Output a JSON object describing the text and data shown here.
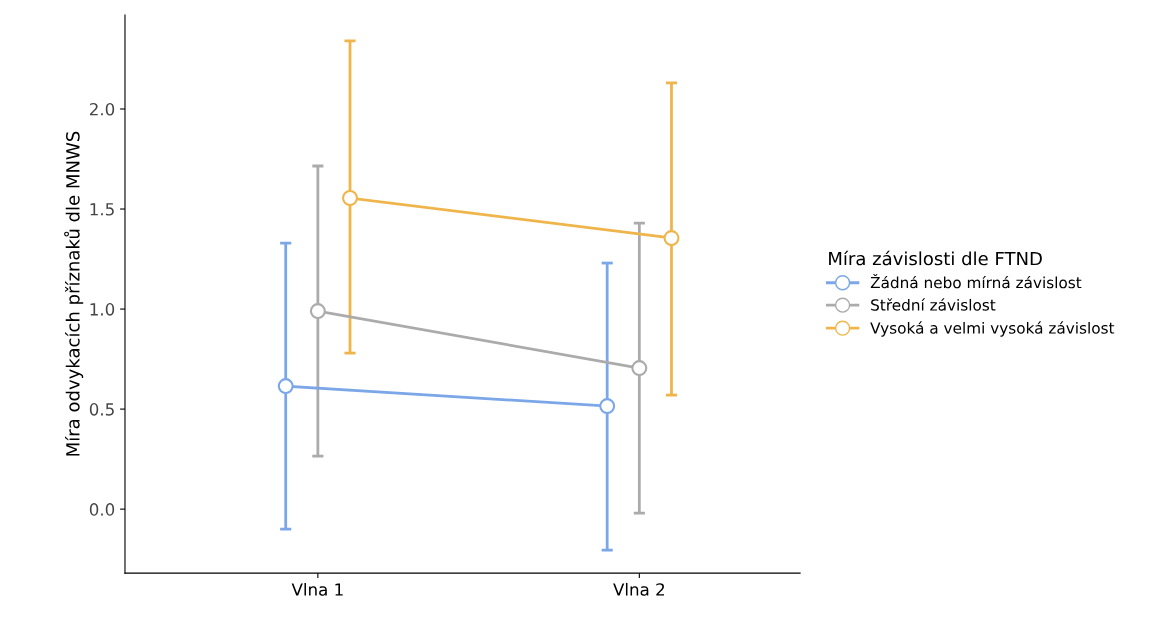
{
  "chart_data": {
    "type": "line",
    "ylabel": "Míra odvykacích příznaků dle MNWS",
    "legend_title": "Míra závislosti dle FTND",
    "categories": [
      "Vlna 1",
      "Vlna 2"
    ],
    "series": [
      {
        "name": "Žádná nebo mírná závislost",
        "color": "#7ba7e8",
        "values": [
          0.615,
          0.515
        ],
        "errors": [
          [
            -0.1,
            1.33
          ],
          [
            -0.205,
            1.23
          ]
        ]
      },
      {
        "name": "Střední závislost",
        "color": "#ababab",
        "values": [
          0.99,
          0.705
        ],
        "errors": [
          [
            0.265,
            1.715
          ],
          [
            -0.02,
            1.43
          ]
        ]
      },
      {
        "name": "Vysoká a velmi vysoká závislost",
        "color": "#efb54a",
        "values": [
          1.555,
          1.355
        ],
        "errors": [
          [
            0.78,
            2.34
          ],
          [
            0.57,
            2.13
          ]
        ]
      }
    ],
    "ylim": [
      -0.32,
      2.47
    ],
    "yticks": [
      {
        "value": 0,
        "label": "0.0"
      },
      0.5,
      {
        "value": 1,
        "label": "1.0"
      },
      1.5,
      {
        "value": 2,
        "label": "2.0"
      }
    ],
    "grid": false,
    "legend": "right",
    "marker": "circle",
    "line_style": "solid"
  }
}
